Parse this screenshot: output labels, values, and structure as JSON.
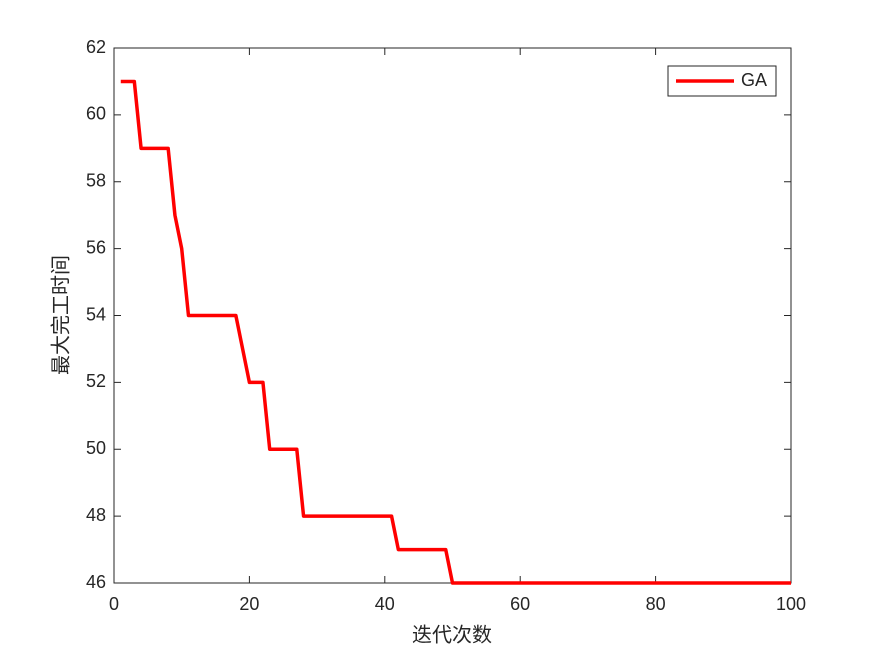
{
  "chart_data": {
    "type": "line",
    "xlabel": "迭代次数",
    "ylabel": "最大完工时间",
    "x": [
      1,
      2,
      3,
      4,
      5,
      6,
      7,
      8,
      9,
      10,
      11,
      12,
      13,
      14,
      15,
      16,
      17,
      18,
      19,
      20,
      21,
      22,
      23,
      24,
      25,
      26,
      27,
      28,
      29,
      30,
      31,
      32,
      33,
      34,
      35,
      36,
      37,
      38,
      39,
      40,
      41,
      42,
      43,
      44,
      45,
      46,
      47,
      48,
      49,
      50,
      51,
      52,
      53,
      54,
      55,
      56,
      57,
      58,
      59,
      60,
      61,
      62,
      63,
      64,
      65,
      66,
      67,
      68,
      69,
      70,
      71,
      72,
      73,
      74,
      75,
      76,
      77,
      78,
      79,
      80,
      81,
      82,
      83,
      84,
      85,
      86,
      87,
      88,
      89,
      90,
      91,
      92,
      93,
      94,
      95,
      96,
      97,
      98,
      99,
      100
    ],
    "series": [
      {
        "name": "GA",
        "color": "#ff0000",
        "values": [
          61,
          61,
          61,
          59,
          59,
          59,
          59,
          59,
          57,
          56,
          54,
          54,
          54,
          54,
          54,
          54,
          54,
          54,
          53,
          52,
          52,
          52,
          50,
          50,
          50,
          50,
          50,
          48,
          48,
          48,
          48,
          48,
          48,
          48,
          48,
          48,
          48,
          48,
          48,
          48,
          48,
          47,
          47,
          47,
          47,
          47,
          47,
          47,
          47,
          46,
          46,
          46,
          46,
          46,
          46,
          46,
          46,
          46,
          46,
          46,
          46,
          46,
          46,
          46,
          46,
          46,
          46,
          46,
          46,
          46,
          46,
          46,
          46,
          46,
          46,
          46,
          46,
          46,
          46,
          46,
          46,
          46,
          46,
          46,
          46,
          46,
          46,
          46,
          46,
          46,
          46,
          46,
          46,
          46,
          46,
          46,
          46,
          46,
          46,
          46
        ]
      }
    ],
    "xlim": [
      0,
      100
    ],
    "xticks": [
      0,
      20,
      40,
      60,
      80,
      100
    ],
    "ylim": [
      46,
      62
    ],
    "yticks": [
      46,
      48,
      50,
      52,
      54,
      56,
      58,
      60,
      62
    ],
    "legend": "upper right"
  }
}
